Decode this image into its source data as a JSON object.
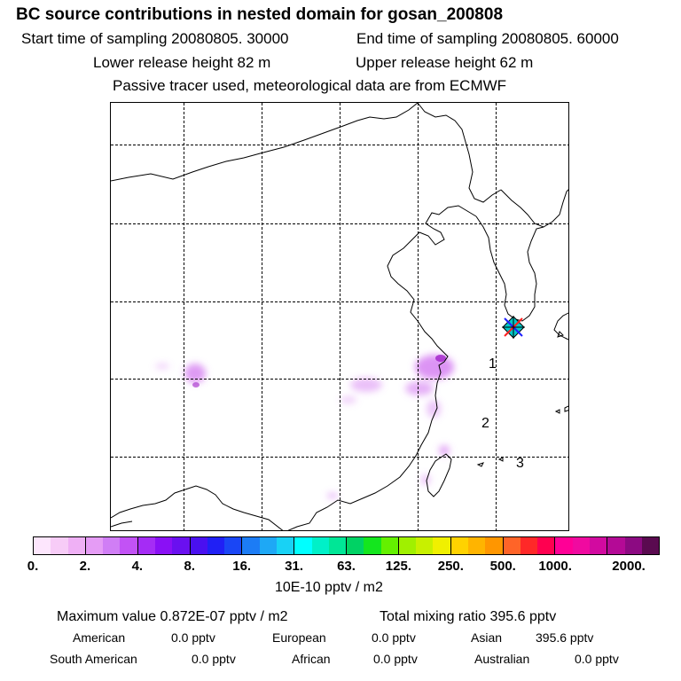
{
  "title": "BC  source contributions in nested domain for gosan_200808",
  "header": {
    "start_time": "Start time of sampling 20080805. 30000",
    "end_time": "End time of sampling 20080805. 60000",
    "lower_height": "Lower release height   82 m",
    "upper_height": "Upper release height   62 m",
    "tracer_note": "Passive tracer used, meteorological data are from ECMWF"
  },
  "map": {
    "markers": [
      "1",
      "2",
      "3"
    ],
    "coast_color": "#000000",
    "plume_color": "#d070f0",
    "receptor_colors": [
      "#00c8c8",
      "#2020ff",
      "#ff2020"
    ]
  },
  "colorbar": {
    "colors": [
      "#fde6fd",
      "#f7ccf7",
      "#efb0f5",
      "#e59cf5",
      "#d07ef5",
      "#c252f5",
      "#a52cf5",
      "#8a10f5",
      "#6a10f0",
      "#4a10f0",
      "#2020f5",
      "#1a46f5",
      "#1c7cf5",
      "#1ea8f5",
      "#18d2f5",
      "#00ffff",
      "#00f0c8",
      "#00e696",
      "#00d264",
      "#14e61e",
      "#64f000",
      "#a0f000",
      "#c8f000",
      "#f0f000",
      "#ffd200",
      "#ffb400",
      "#ff9600",
      "#ff6428",
      "#ff2828",
      "#ff0050",
      "#ff0096",
      "#f00aa0",
      "#d20aa0",
      "#b40a96",
      "#8c0a82",
      "#5a0a50"
    ],
    "tick_labels": [
      "0.",
      "2.",
      "4.",
      "8.",
      "16.",
      "31.",
      "63.",
      "125.",
      "250.",
      "500.",
      "1000.",
      "2000."
    ],
    "units": "10E-10 pptv / m2"
  },
  "summary": {
    "maximum_value": "Maximum value  0.872E-07 pptv / m2",
    "total_mixing": "Total mixing ratio      395.6 pptv"
  },
  "regions": {
    "american_label": "American",
    "american_value": "0.0 pptv",
    "european_label": "European",
    "european_value": "0.0 pptv",
    "asian_label": "Asian",
    "asian_value": "395.6 pptv",
    "south_american_label": "South American",
    "south_american_value": "0.0 pptv",
    "african_label": "African",
    "african_value": "0.0 pptv",
    "australian_label": "Australian",
    "australian_value": "0.0 pptv"
  }
}
